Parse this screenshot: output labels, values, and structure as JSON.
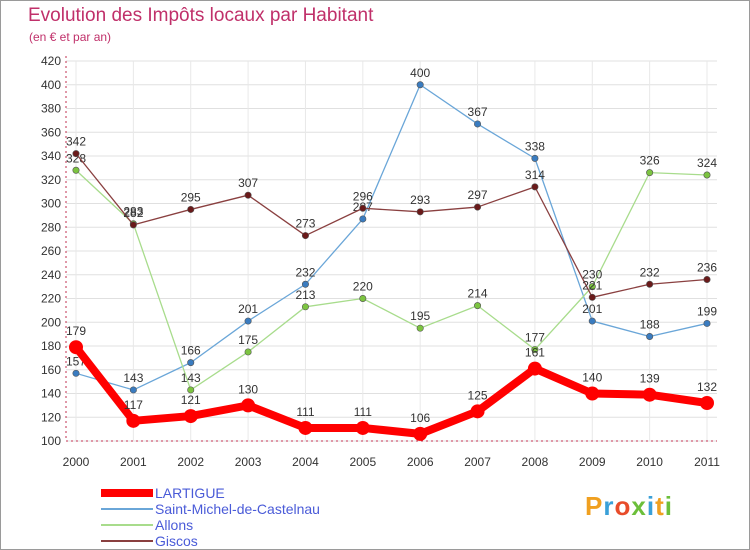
{
  "title": "Evolution des Impôts locaux par Habitant",
  "subtitle": "(en € et par an)",
  "logo": {
    "text": "Proxiti",
    "colors": [
      "#f0a020",
      "#3aa0d8",
      "#e84c2a",
      "#6cbf3a",
      "#3aa0d8",
      "#f0a020",
      "#6cbf3a"
    ]
  },
  "chart_data": {
    "type": "line",
    "x": [
      "2000",
      "2001",
      "2002",
      "2003",
      "2004",
      "2005",
      "2006",
      "2007",
      "2008",
      "2009",
      "2010",
      "2011"
    ],
    "yticks": [
      "100",
      "120",
      "140",
      "160",
      "180",
      "200",
      "220",
      "240",
      "260",
      "280",
      "300",
      "320",
      "340",
      "360",
      "380",
      "400",
      "420"
    ],
    "ylim": [
      100,
      420
    ],
    "grid": true,
    "legend_position": "bottom-left",
    "series": [
      {
        "name": "Saint-Michel-de-Castelnau",
        "color": "#6aa6d8",
        "marker": "#3a7cc0",
        "values": [
          157,
          143,
          166,
          201,
          232,
          287,
          400,
          367,
          338,
          201,
          188,
          199
        ],
        "labels": [
          "157",
          "143",
          "166",
          "201",
          "232",
          "287",
          "400",
          "367",
          "338",
          "201",
          "188",
          "199"
        ]
      },
      {
        "name": "Allons",
        "color": "#a8dc8c",
        "marker": "#7cc440",
        "values": [
          328,
          283,
          143,
          175,
          213,
          220,
          195,
          214,
          177,
          230,
          326,
          324
        ],
        "labels": [
          "328",
          "283",
          "143",
          "175",
          "213",
          "220",
          "195",
          "214",
          "177",
          "230",
          "326",
          "324"
        ]
      },
      {
        "name": "Giscos",
        "color": "#8a4040",
        "marker": "#6a1a1a",
        "values": [
          342,
          282,
          295,
          307,
          273,
          296,
          293,
          297,
          314,
          221,
          232,
          236
        ],
        "labels": [
          "342",
          "282",
          "295",
          "307",
          "273",
          "296",
          "293",
          "297",
          "314",
          "221",
          "232",
          "236"
        ]
      },
      {
        "name": "LARTIGUE",
        "color": "#ff0000",
        "marker": "#ff0000",
        "values": [
          179,
          117,
          121,
          130,
          111,
          111,
          106,
          125,
          161,
          140,
          139,
          132
        ],
        "labels": [
          "179",
          "117",
          "121",
          "130",
          "111",
          "111",
          "106",
          "125",
          "161",
          "140",
          "139",
          "132"
        ]
      }
    ],
    "legend": [
      {
        "name": "LARTIGUE",
        "color": "#ff0000"
      },
      {
        "name": "Saint-Michel-de-Castelnau",
        "color": "#6aa6d8"
      },
      {
        "name": "Allons",
        "color": "#a8dc8c"
      },
      {
        "name": "Giscos",
        "color": "#8a4040"
      }
    ]
  }
}
